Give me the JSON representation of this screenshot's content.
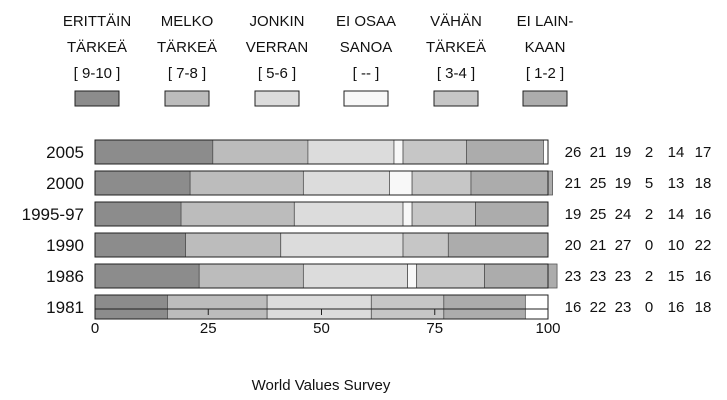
{
  "chart_data": {
    "type": "bar",
    "orientation": "horizontal",
    "stacked": true,
    "categories": [
      "2005",
      "2000",
      "1995-97",
      "1990",
      "1986",
      "1981"
    ],
    "series": [
      {
        "name": "ERITTÄIN TÄRKEÄ [ 9-10 ]",
        "legend_lines": [
          "ERITTÄIN",
          "TÄRKEÄ",
          "[ 9-10 ]"
        ],
        "color": "#8c8c8c",
        "values": [
          26,
          21,
          19,
          20,
          23,
          16
        ]
      },
      {
        "name": "MELKO TÄRKEÄ [ 7-8 ]",
        "legend_lines": [
          "MELKO",
          "TÄRKEÄ",
          "[ 7-8 ]"
        ],
        "color": "#bcbcbc",
        "values": [
          21,
          25,
          25,
          21,
          23,
          22
        ]
      },
      {
        "name": "JONKIN VERRAN [ 5-6 ]",
        "legend_lines": [
          "JONKIN",
          "VERRAN",
          "[ 5-6 ]"
        ],
        "color": "#dcdcdc",
        "values": [
          19,
          19,
          24,
          27,
          23,
          23
        ]
      },
      {
        "name": "EI OSAA SANOA [ -- ]",
        "legend_lines": [
          "EI OSAA",
          "SANOA",
          "[ -- ]"
        ],
        "color": "#f8f8f8",
        "values": [
          2,
          5,
          2,
          0,
          2,
          0
        ]
      },
      {
        "name": "VÄHÄN TÄRKEÄ [ 3-4 ]",
        "legend_lines": [
          "VÄHÄN",
          "TÄRKEÄ",
          "[ 3-4 ]"
        ],
        "color": "#c6c6c6",
        "values": [
          14,
          13,
          14,
          10,
          15,
          16
        ]
      },
      {
        "name": "EI LAINKAAN [ 1-2 ]",
        "legend_lines": [
          "EI LAIN-",
          "KAAN",
          "[ 1-2 ]"
        ],
        "color": "#acacac",
        "values": [
          17,
          18,
          16,
          22,
          16,
          18
        ]
      }
    ],
    "xlim": [
      0,
      100
    ],
    "xticks": [
      "0",
      "25",
      "50",
      "75",
      "100"
    ],
    "xlabel": "World Values Survey",
    "ylabel": "",
    "title": "",
    "grid": false,
    "legend_position": "top",
    "value_labels_position": "right"
  }
}
